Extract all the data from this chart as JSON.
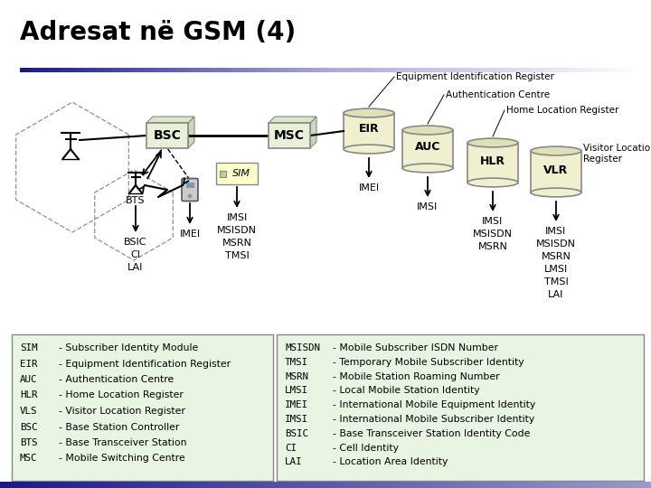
{
  "title": "Adresat në GSM (4)",
  "bg_color": "#ffffff",
  "box_fill": "#e8f0d8",
  "box_fill_top": "#d8e8c8",
  "box_fill_right": "#c8d8b8",
  "box_edge": "#888888",
  "cyl_fill": "#f0f0d0",
  "cyl_fill_top": "#e0e0b8",
  "cyl_edge": "#888888",
  "legend_fill": "#e8f5e2",
  "legend_edge": "#888888",
  "title_bar_left": "#1a1a8c",
  "bottom_bar_left": "#1a1a8c",
  "bottom_bar_right": "#9999cc",
  "sim_fill": "#ffffcc",
  "sim_edge": "#888888",
  "left_legend": [
    [
      "SIM",
      "- Subscriber Identity Module"
    ],
    [
      "EIR",
      "- Equipment Identification Register"
    ],
    [
      "AUC",
      "- Authentication Centre"
    ],
    [
      "HLR",
      "- Home Location Register"
    ],
    [
      "VLS",
      "- Visitor Location Register"
    ],
    [
      "BSC",
      "- Base Station Controller"
    ],
    [
      "BTS",
      "- Base Transceiver Station"
    ],
    [
      "MSC",
      "- Mobile Switching Centre"
    ]
  ],
  "right_legend": [
    [
      "MSISDN",
      "- Mobile Subscriber ISDN Number"
    ],
    [
      "TMSI",
      "- Temporary Mobile Subscriber Identity"
    ],
    [
      "MSRN",
      "- Mobile Station Roaming Number"
    ],
    [
      "LMSI",
      "- Local Mobile Station Identity"
    ],
    [
      "IMEI",
      "- International Mobile Equipment Identity"
    ],
    [
      "IMSI",
      "- International Mobile Subscriber Identity"
    ],
    [
      "BSIC",
      "- Base Transceiver Station Identity Code"
    ],
    [
      "CI",
      "- Cell Identity"
    ],
    [
      "LAI",
      "- Location Area Identity"
    ]
  ]
}
